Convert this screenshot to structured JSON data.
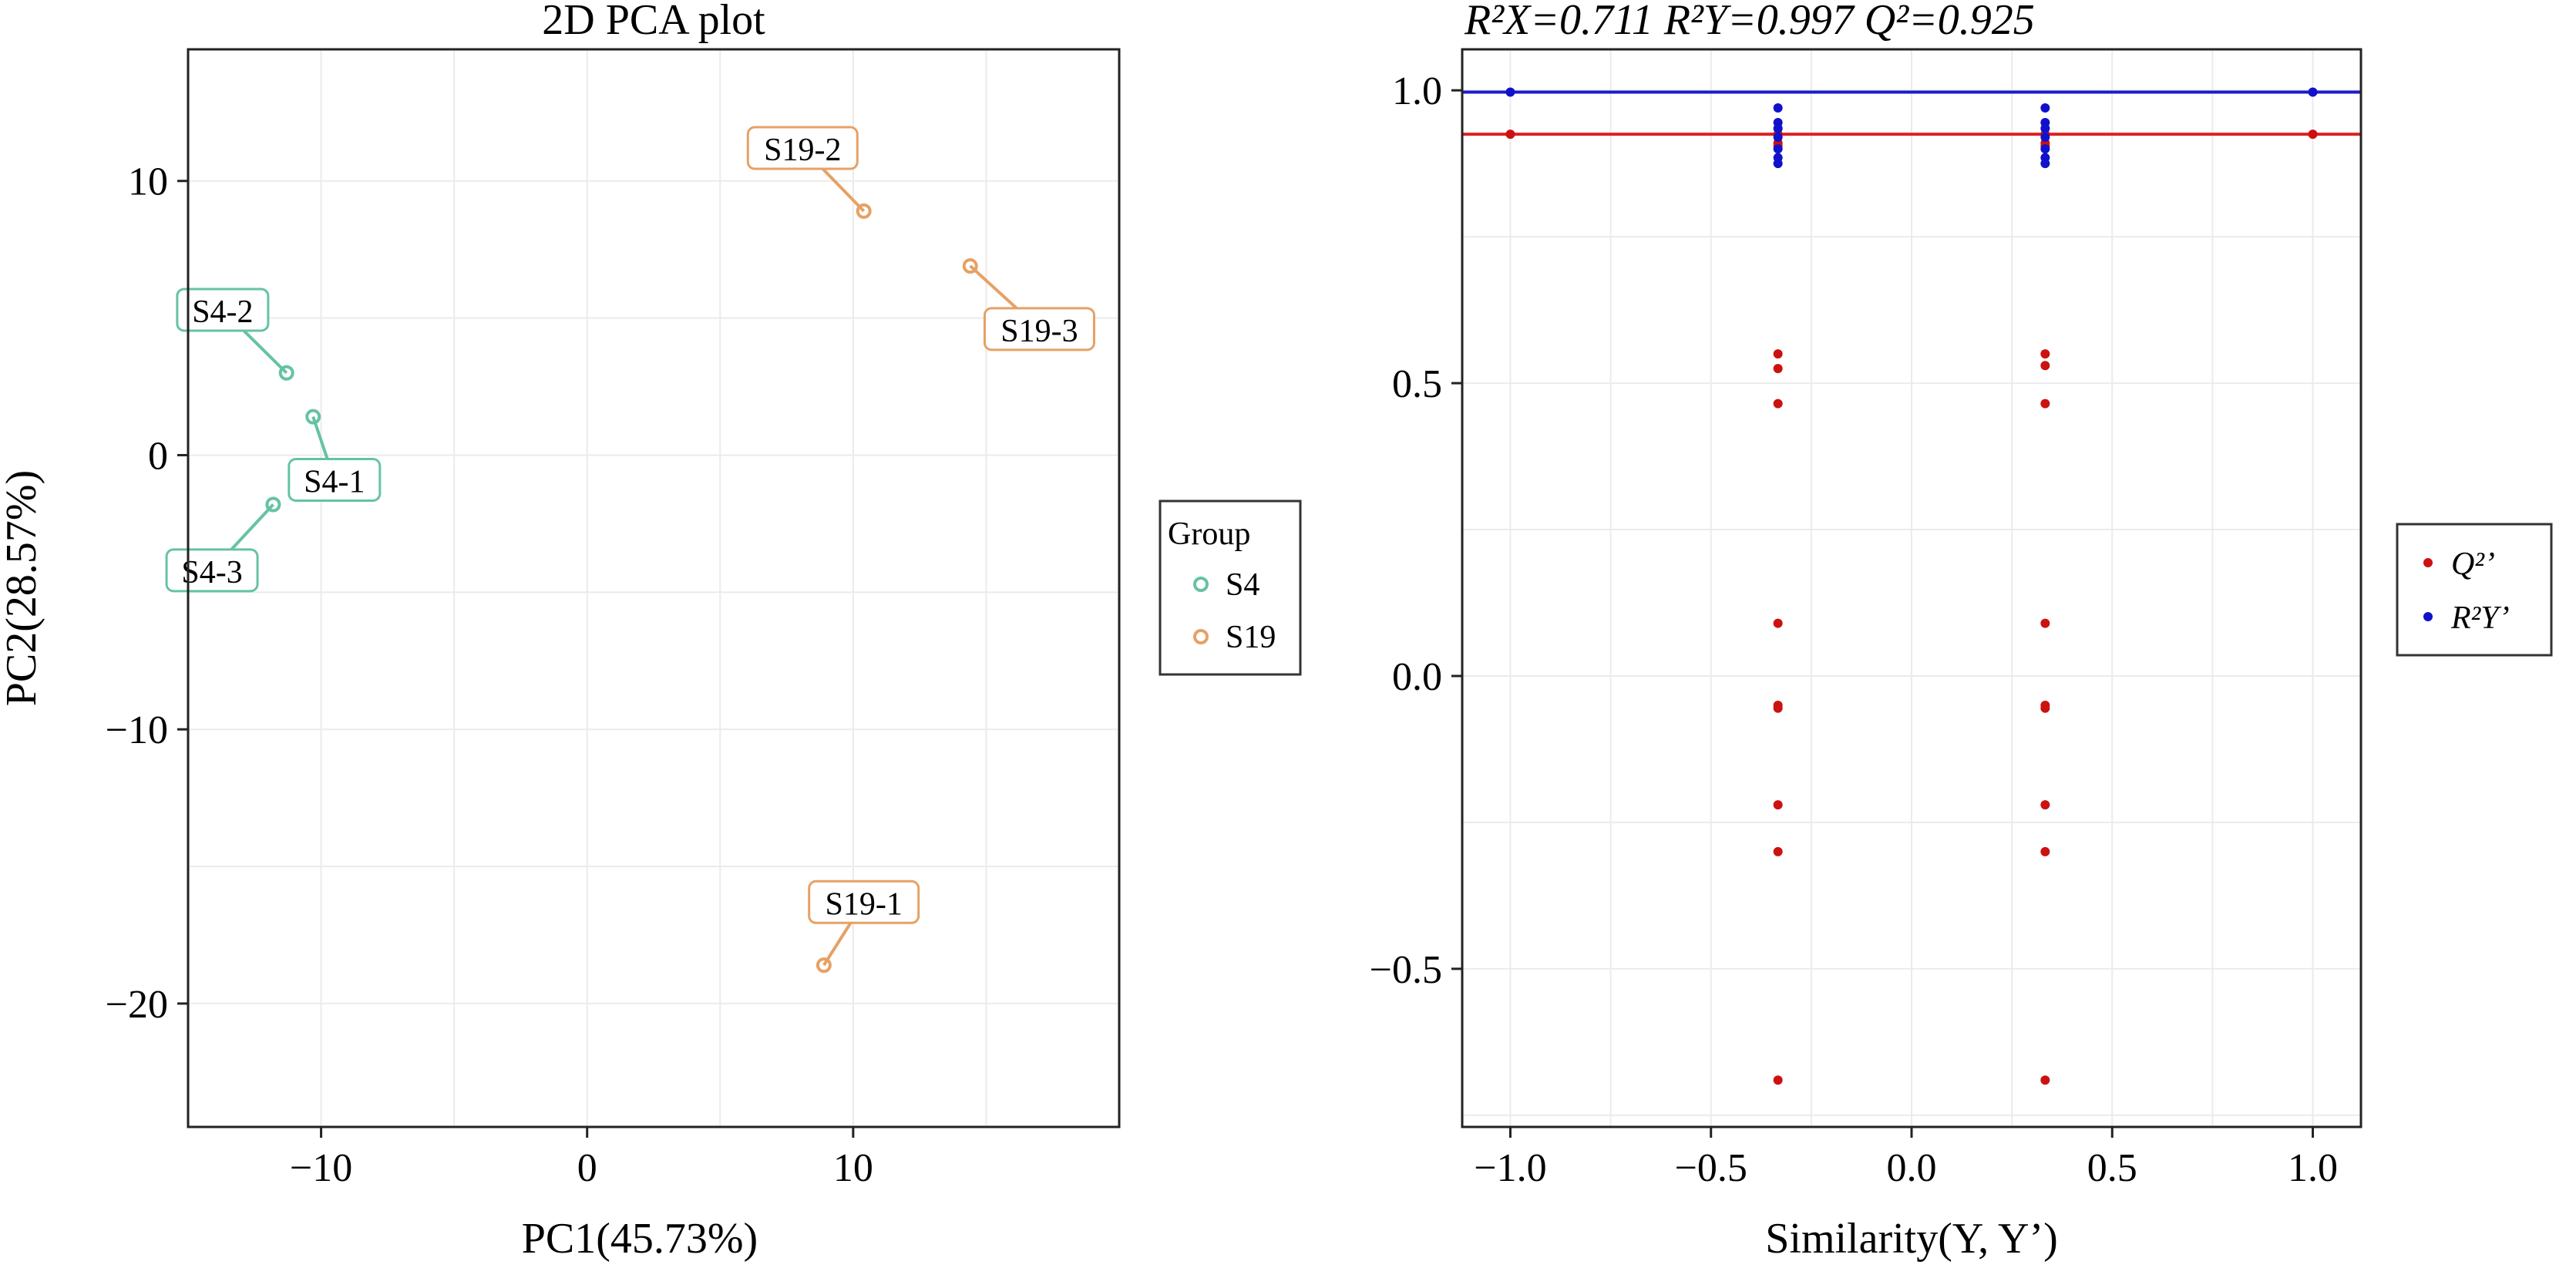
{
  "chart_data": [
    {
      "type": "scatter",
      "title": "2D PCA plot",
      "xlabel": "PC1(45.73%)",
      "ylabel": "PC2(28.57%)",
      "xlim": [
        -15,
        20
      ],
      "ylim": [
        -24.5,
        14.8
      ],
      "xticks": [
        -10,
        0,
        10
      ],
      "yticks": [
        -20,
        -10,
        0,
        10
      ],
      "grid": true,
      "legend": {
        "title": "Group",
        "position": "right"
      },
      "series": [
        {
          "name": "S4",
          "color": "#66c2a5",
          "points": [
            {
              "label": "S4-1",
              "x": -10.3,
              "y": 1.4,
              "label_x": -9.5,
              "label_y": -0.9
            },
            {
              "label": "S4-2",
              "x": -11.3,
              "y": 3.0,
              "label_x": -13.7,
              "label_y": 5.3
            },
            {
              "label": "S4-3",
              "x": -11.8,
              "y": -1.8,
              "label_x": -14.1,
              "label_y": -4.2
            }
          ]
        },
        {
          "name": "S19",
          "color": "#e6a165",
          "points": [
            {
              "label": "S19-1",
              "x": 8.9,
              "y": -18.6,
              "label_x": 10.4,
              "label_y": -16.3
            },
            {
              "label": "S19-2",
              "x": 10.4,
              "y": 8.9,
              "label_x": 8.1,
              "label_y": 11.2
            },
            {
              "label": "S19-3",
              "x": 14.4,
              "y": 6.9,
              "label_x": 17.0,
              "label_y": 4.6
            }
          ]
        }
      ]
    },
    {
      "type": "scatter",
      "title": "R²X=0.711 R²Y=0.997 Q²=0.925",
      "xlabel": "Similarity(Y, Y’)",
      "ylabel": "",
      "xlim": [
        -1.12,
        1.12
      ],
      "ylim": [
        -0.77,
        1.07
      ],
      "xticks": [
        -1.0,
        -0.5,
        0.0,
        0.5,
        1.0
      ],
      "yticks": [
        -0.5,
        0.0,
        0.5,
        1.0
      ],
      "grid": true,
      "legend": {
        "position": "right"
      },
      "hlines": [
        {
          "series": "R²Y’",
          "y": 0.997,
          "color": "#1a1acc"
        },
        {
          "series": "Q²’",
          "y": 0.925,
          "color": "#e02020"
        }
      ],
      "series": [
        {
          "name": "Q²’",
          "color": "#cc1111",
          "points": [
            [
              -1.0,
              0.925
            ],
            [
              1.0,
              0.925
            ],
            [
              -0.333,
              0.925
            ],
            [
              -0.333,
              0.91
            ],
            [
              -0.333,
              0.905
            ],
            [
              -0.333,
              0.55
            ],
            [
              -0.333,
              0.525
            ],
            [
              -0.333,
              0.465
            ],
            [
              -0.333,
              0.09
            ],
            [
              -0.333,
              -0.05
            ],
            [
              -0.333,
              -0.055
            ],
            [
              -0.333,
              -0.22
            ],
            [
              -0.333,
              -0.3
            ],
            [
              -0.333,
              -0.69
            ],
            [
              0.333,
              0.925
            ],
            [
              0.333,
              0.91
            ],
            [
              0.333,
              0.905
            ],
            [
              0.333,
              0.55
            ],
            [
              0.333,
              0.53
            ],
            [
              0.333,
              0.465
            ],
            [
              0.333,
              0.09
            ],
            [
              0.333,
              -0.05
            ],
            [
              0.333,
              -0.055
            ],
            [
              0.333,
              -0.22
            ],
            [
              0.333,
              -0.3
            ],
            [
              0.333,
              -0.69
            ]
          ]
        },
        {
          "name": "R²Y’",
          "color": "#1111cc",
          "points": [
            [
              -1.0,
              0.997
            ],
            [
              1.0,
              0.997
            ],
            [
              -0.333,
              0.97
            ],
            [
              -0.333,
              0.945
            ],
            [
              -0.333,
              0.935
            ],
            [
              -0.333,
              0.92
            ],
            [
              -0.333,
              0.9
            ],
            [
              -0.333,
              0.885
            ],
            [
              -0.333,
              0.875
            ],
            [
              0.333,
              0.97
            ],
            [
              0.333,
              0.945
            ],
            [
              0.333,
              0.935
            ],
            [
              0.333,
              0.92
            ],
            [
              0.333,
              0.9
            ],
            [
              0.333,
              0.885
            ],
            [
              0.333,
              0.875
            ]
          ]
        }
      ]
    }
  ]
}
